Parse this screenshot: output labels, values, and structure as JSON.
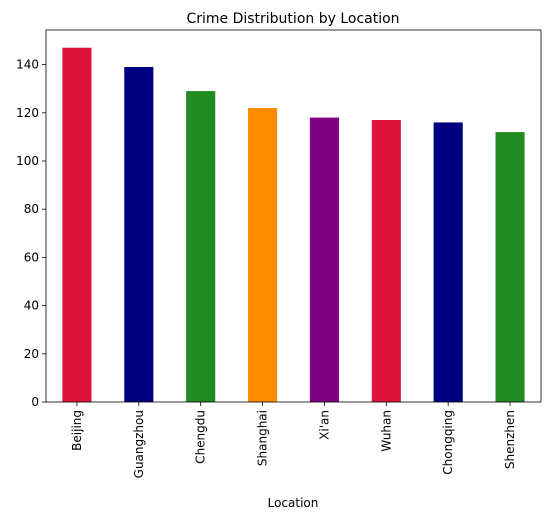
{
  "chart_data": {
    "type": "bar",
    "title": "Crime Distribution by Location",
    "xlabel": "Location",
    "ylabel": "",
    "categories": [
      "Beijing",
      "Guangzhou",
      "Chengdu",
      "Shanghai",
      "Xi'an",
      "Wuhan",
      "Chongqing",
      "Shenzhen"
    ],
    "values": [
      147,
      139,
      129,
      122,
      118,
      117,
      116,
      112
    ],
    "colors": [
      "#dc143c",
      "#000080",
      "#228b22",
      "#ff8c00",
      "#800080",
      "#dc143c",
      "#000080",
      "#228b22"
    ],
    "ylim": [
      0,
      154.35
    ],
    "yticks": [
      0,
      20,
      40,
      60,
      80,
      100,
      120,
      140
    ],
    "grid": false,
    "legend": "none"
  }
}
